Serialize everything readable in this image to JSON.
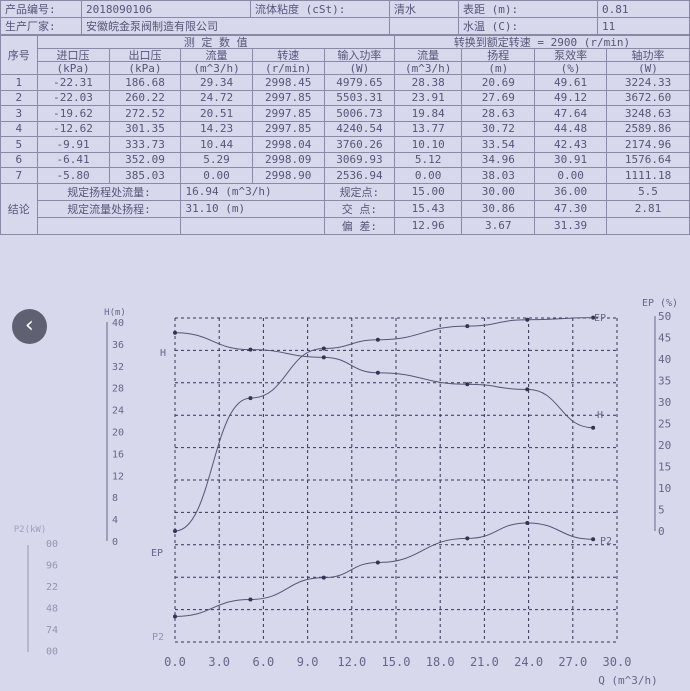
{
  "info": {
    "product_no_label": "产品编号:",
    "product_no": "2018090106",
    "viscosity_label": "流体粘度 (cSt):",
    "viscosity": "清水",
    "gauge_label": "表距 (m):",
    "gauge": "0.81",
    "maker_label": "生产厂家:",
    "maker": "安徽皖金泵阀制造有限公司",
    "water_temp_label": "水温 (C):",
    "water_temp": "11"
  },
  "table": {
    "index_header": "序号",
    "measured_header": "测 定 数 值",
    "converted_header": "转换到额定转速 = 2900 (r/min)",
    "columns": [
      {
        "name": "进口压",
        "unit": "(kPa)"
      },
      {
        "name": "出口压",
        "unit": "(kPa)"
      },
      {
        "name": "流量",
        "unit": "(m^3/h)"
      },
      {
        "name": "转速",
        "unit": "(r/min)"
      },
      {
        "name": "输入功率",
        "unit": "(W)"
      },
      {
        "name": "流量",
        "unit": "(m^3/h)"
      },
      {
        "name": "扬程",
        "unit": "(m)"
      },
      {
        "name": "泵效率",
        "unit": "(%)"
      },
      {
        "name": "轴功率",
        "unit": "(W)"
      }
    ],
    "rows": [
      [
        "1",
        "-22.31",
        "186.68",
        "29.34",
        "2998.45",
        "4979.65",
        "28.38",
        "20.69",
        "49.61",
        "3224.33"
      ],
      [
        "2",
        "-22.03",
        "260.22",
        "24.72",
        "2997.85",
        "5503.31",
        "23.91",
        "27.69",
        "49.12",
        "3672.60"
      ],
      [
        "3",
        "-19.62",
        "272.52",
        "20.51",
        "2997.85",
        "5006.73",
        "19.84",
        "28.63",
        "47.64",
        "3248.63"
      ],
      [
        "4",
        "-12.62",
        "301.35",
        "14.23",
        "2997.85",
        "4240.54",
        "13.77",
        "30.72",
        "44.48",
        "2589.86"
      ],
      [
        "5",
        "-9.91",
        "333.73",
        "10.44",
        "2998.04",
        "3760.26",
        "10.10",
        "33.54",
        "42.43",
        "2174.96"
      ],
      [
        "6",
        "-6.41",
        "352.09",
        "5.29",
        "2998.09",
        "3069.93",
        "5.12",
        "34.96",
        "30.91",
        "1576.64"
      ],
      [
        "7",
        "-5.80",
        "385.03",
        "0.00",
        "2998.90",
        "2536.94",
        "0.00",
        "38.03",
        "0.00",
        "1111.18"
      ]
    ],
    "conclusion_label": "结论",
    "conclusion": [
      {
        "label": "规定扬程处流量:",
        "value": "16.94 (m^3/h)",
        "point": "规定点:",
        "q": "15.00",
        "h": "30.00",
        "eff": "36.00",
        "p": "5.5"
      },
      {
        "label": "规定流量处扬程:",
        "value": "31.10 (m)",
        "point": "交 点:",
        "q": "15.43",
        "h": "30.86",
        "eff": "47.30",
        "p": "2.81"
      },
      {
        "label": "",
        "value": "",
        "point": "偏 差:",
        "q": "12.96",
        "h": "3.67",
        "eff": "31.39",
        "p": ""
      }
    ]
  },
  "chart_data": {
    "type": "line",
    "xlabel": "Q (m^3/h)",
    "xlim": [
      0,
      30
    ],
    "xticks": [
      "0.0",
      "3.0",
      "6.0",
      "9.0",
      "12.0",
      "15.0",
      "18.0",
      "21.0",
      "24.0",
      "27.0",
      "30.0"
    ],
    "grid": true,
    "axes": {
      "h": {
        "label": "H(m)",
        "range": [
          0,
          40
        ],
        "ticks": [
          "40",
          "36",
          "32",
          "28",
          "24",
          "20",
          "16",
          "12",
          "8",
          "4",
          "0"
        ]
      },
      "ep": {
        "label": "EP (%)",
        "range": [
          0,
          50
        ],
        "ticks": [
          "50",
          "45",
          "40",
          "35",
          "30",
          "25",
          "20",
          "15",
          "10",
          "5",
          "0"
        ]
      },
      "p2": {
        "label": "P2(kW)",
        "ticks": [
          "00",
          "96",
          "22",
          "48",
          "74",
          "00"
        ]
      }
    },
    "series": [
      {
        "name": "H",
        "q": [
          0.0,
          5.12,
          10.1,
          13.77,
          19.84,
          23.91,
          28.38
        ],
        "values": [
          38.03,
          34.96,
          33.54,
          30.72,
          28.63,
          27.69,
          20.69
        ]
      },
      {
        "name": "EP",
        "q": [
          0.0,
          5.12,
          10.1,
          13.77,
          19.84,
          23.91,
          28.38
        ],
        "values": [
          0.0,
          30.91,
          42.43,
          44.48,
          47.64,
          49.12,
          49.61
        ]
      },
      {
        "name": "P2",
        "q": [
          0.0,
          5.12,
          10.1,
          13.77,
          19.84,
          23.91,
          28.38
        ],
        "values": [
          1.11118,
          1.57664,
          2.17496,
          2.58986,
          3.24863,
          3.6726,
          3.22433
        ]
      }
    ],
    "curve_labels": {
      "h_left": "H",
      "ep_left": "EP",
      "p2_left": "P2",
      "ep_right": "-EP",
      "h_right": "H",
      "p2_right": "P2"
    }
  },
  "nav": {
    "back_icon": "chevron-left-icon",
    "back": "‹"
  }
}
